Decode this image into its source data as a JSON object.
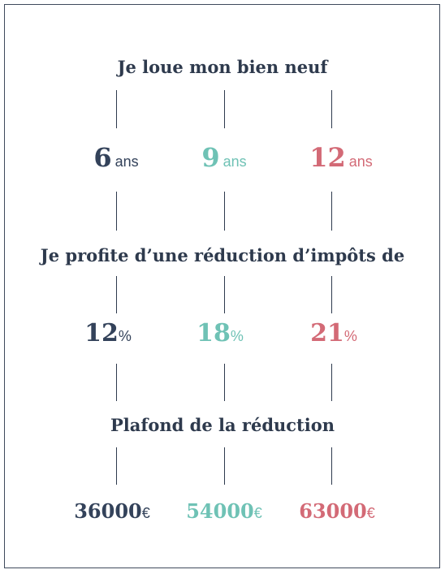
{
  "sections": [
    {
      "heading": "Je loue mon bien neuf"
    },
    {
      "heading": "Je profite d’une réduction d’impôts de"
    },
    {
      "heading": "Plafond de la réduction"
    }
  ],
  "durations": [
    {
      "value": "6",
      "unit": "ans",
      "color": "#33425a"
    },
    {
      "value": "9",
      "unit": "ans",
      "color": "#6fc2b5"
    },
    {
      "value": "12",
      "unit": "ans",
      "color": "#d36a76"
    }
  ],
  "reductions": [
    {
      "value": "12",
      "unit": "%",
      "color": "#33425a"
    },
    {
      "value": "18",
      "unit": "%",
      "color": "#6fc2b5"
    },
    {
      "value": "21",
      "unit": "%",
      "color": "#d36a76"
    }
  ],
  "ceilings": [
    {
      "value": "36000",
      "unit": "€",
      "color": "#33425a"
    },
    {
      "value": "54000",
      "unit": "€",
      "color": "#6fc2b5"
    },
    {
      "value": "63000",
      "unit": "€",
      "color": "#d36a76"
    }
  ]
}
